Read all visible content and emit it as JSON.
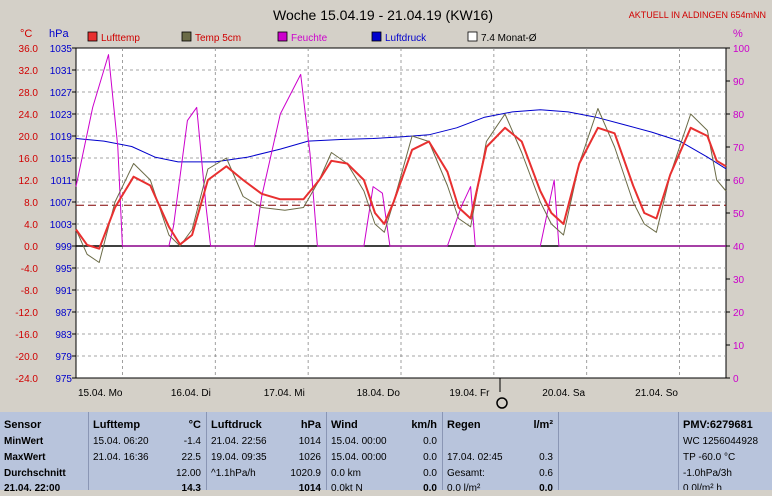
{
  "header": {
    "title": "Woche 15.04.19 - 21.04.19 (KW16)",
    "location": "AKTUELL IN ALDINGEN 654mNN"
  },
  "chart_data": {
    "type": "line",
    "title": "Woche 15.04.19 - 21.04.19 (KW16)",
    "left_axis_label": "°C",
    "left2_axis_label": "hPa",
    "right_axis_label": "%",
    "ylim_temp": [
      -24,
      36
    ],
    "ylim_pressure": [
      975,
      1037
    ],
    "ylim_humidity": [
      0,
      100
    ],
    "temp_ticks": [
      "36.0",
      "32.0",
      "28.0",
      "24.0",
      "20.0",
      "16.0",
      "12.0",
      "8.0",
      "4.0",
      "0.0",
      "-4.0",
      "-8.0",
      "-12.0",
      "-16.0",
      "-20.0",
      "-24.0"
    ],
    "pressure_ticks": [
      "1035",
      "1031",
      "1027",
      "1023",
      "1019",
      "1015",
      "1011",
      "1007",
      "1003",
      "999",
      "995",
      "991",
      "987",
      "983",
      "979",
      "975"
    ],
    "humidity_ticks": [
      "100",
      "90",
      "80",
      "70",
      "60",
      "50",
      "40",
      "30",
      "20",
      "10",
      "0"
    ],
    "x_labels": [
      "15.04. Mo",
      "16.04. Di",
      "17.04. Mi",
      "18.04. Do",
      "19.04. Fr",
      "20.04. Sa",
      "21.04. So"
    ],
    "legend": [
      "Lufttemp",
      "Temp 5cm",
      "Feuchte",
      "Luftdruck",
      "7.4 Monat-Ø"
    ],
    "colors": {
      "lufttemp": "#e83030",
      "temp5cm": "#6b6b47",
      "feuchte": "#cc00cc",
      "luftdruck": "#0000cc",
      "monat": "#000000"
    },
    "month_avg_temp": 7.4,
    "series": [
      {
        "name": "Lufttemp",
        "values": [
          [
            0,
            3
          ],
          [
            0.12,
            0.2
          ],
          [
            0.25,
            -0.5
          ],
          [
            0.42,
            7
          ],
          [
            0.62,
            12.6
          ],
          [
            0.8,
            11
          ],
          [
            1.0,
            3.5
          ],
          [
            1.12,
            0.3
          ],
          [
            1.25,
            2
          ],
          [
            1.42,
            12
          ],
          [
            1.62,
            14.5
          ],
          [
            1.8,
            12
          ],
          [
            2.0,
            9.5
          ],
          [
            2.2,
            8.5
          ],
          [
            2.45,
            8.5
          ],
          [
            2.62,
            12
          ],
          [
            2.75,
            15.5
          ],
          [
            2.92,
            15
          ],
          [
            3.1,
            12
          ],
          [
            3.22,
            6
          ],
          [
            3.32,
            4
          ],
          [
            3.42,
            8
          ],
          [
            3.62,
            17.5
          ],
          [
            3.8,
            19
          ],
          [
            4.0,
            13.5
          ],
          [
            4.12,
            7
          ],
          [
            4.25,
            5
          ],
          [
            4.42,
            18
          ],
          [
            4.62,
            21.5
          ],
          [
            4.8,
            19
          ],
          [
            5.0,
            10
          ],
          [
            5.12,
            6
          ],
          [
            5.25,
            4
          ],
          [
            5.42,
            15
          ],
          [
            5.62,
            21.5
          ],
          [
            5.8,
            20.5
          ],
          [
            6.0,
            11
          ],
          [
            6.12,
            6
          ],
          [
            6.25,
            5
          ],
          [
            6.4,
            13
          ],
          [
            6.62,
            21.5
          ],
          [
            6.8,
            20
          ],
          [
            6.9,
            15.5
          ],
          [
            7.0,
            14.5
          ]
        ]
      },
      {
        "name": "Temp 5cm",
        "values": [
          [
            0,
            3
          ],
          [
            0.12,
            -1.5
          ],
          [
            0.25,
            -3
          ],
          [
            0.42,
            8
          ],
          [
            0.62,
            15
          ],
          [
            0.8,
            12
          ],
          [
            1.0,
            2
          ],
          [
            1.12,
            0
          ],
          [
            1.25,
            3
          ],
          [
            1.42,
            14
          ],
          [
            1.62,
            16
          ],
          [
            1.8,
            9
          ],
          [
            2.0,
            7
          ],
          [
            2.25,
            6.5
          ],
          [
            2.45,
            7
          ],
          [
            2.62,
            12
          ],
          [
            2.75,
            17
          ],
          [
            2.92,
            15
          ],
          [
            3.1,
            10
          ],
          [
            3.22,
            4
          ],
          [
            3.32,
            2.5
          ],
          [
            3.42,
            8
          ],
          [
            3.62,
            20
          ],
          [
            3.8,
            19
          ],
          [
            4.0,
            11
          ],
          [
            4.12,
            5
          ],
          [
            4.25,
            3.5
          ],
          [
            4.42,
            19
          ],
          [
            4.62,
            24
          ],
          [
            4.8,
            17
          ],
          [
            5.0,
            8
          ],
          [
            5.12,
            4
          ],
          [
            5.25,
            2
          ],
          [
            5.42,
            15
          ],
          [
            5.62,
            25
          ],
          [
            5.8,
            18
          ],
          [
            6.0,
            8
          ],
          [
            6.12,
            4
          ],
          [
            6.25,
            2.5
          ],
          [
            6.4,
            13
          ],
          [
            6.62,
            24
          ],
          [
            6.8,
            21
          ],
          [
            6.9,
            12
          ],
          [
            7.0,
            10
          ]
        ]
      },
      {
        "name": "Feuchte",
        "values": [
          [
            0,
            58
          ],
          [
            0.18,
            82
          ],
          [
            0.35,
            98
          ],
          [
            0.45,
            70
          ],
          [
            0.5,
            40
          ],
          [
            1.0,
            40
          ],
          [
            1.05,
            46
          ],
          [
            1.2,
            78
          ],
          [
            1.3,
            82
          ],
          [
            1.4,
            52
          ],
          [
            1.45,
            40
          ],
          [
            1.92,
            40
          ],
          [
            2.0,
            55
          ],
          [
            2.2,
            80
          ],
          [
            2.42,
            92
          ],
          [
            2.52,
            68
          ],
          [
            2.6,
            40
          ],
          [
            3.1,
            40
          ],
          [
            3.2,
            58
          ],
          [
            3.3,
            56
          ],
          [
            3.38,
            40
          ],
          [
            4.0,
            40
          ],
          [
            4.15,
            52
          ],
          [
            4.25,
            58
          ],
          [
            4.3,
            40
          ],
          [
            5.0,
            40
          ],
          [
            5.15,
            60
          ],
          [
            5.2,
            40
          ],
          [
            7.0,
            40
          ]
        ]
      },
      {
        "name": "Luftdruck",
        "values": [
          [
            0,
            1020
          ],
          [
            0.3,
            1019.5
          ],
          [
            0.6,
            1018.5
          ],
          [
            0.85,
            1016.5
          ],
          [
            1.1,
            1015.6
          ],
          [
            1.5,
            1015.6
          ],
          [
            1.85,
            1016.5
          ],
          [
            2.2,
            1018
          ],
          [
            2.5,
            1019.5
          ],
          [
            2.85,
            1019.8
          ],
          [
            3.2,
            1020
          ],
          [
            3.5,
            1020.3
          ],
          [
            3.8,
            1020.7
          ],
          [
            4.1,
            1022
          ],
          [
            4.4,
            1024
          ],
          [
            4.7,
            1025
          ],
          [
            5.0,
            1025.4
          ],
          [
            5.3,
            1025
          ],
          [
            5.6,
            1024
          ],
          [
            5.9,
            1022.6
          ],
          [
            6.2,
            1021.2
          ],
          [
            6.5,
            1019.5
          ],
          [
            6.8,
            1016.5
          ],
          [
            7.0,
            1014.3
          ]
        ]
      }
    ]
  },
  "panel": {
    "sensor": {
      "title": "Sensor",
      "rows": [
        "MinWert",
        "MaxWert",
        "Durchschnitt",
        "21.04. 22:00"
      ]
    },
    "lufttemp": {
      "title": "Lufttemp",
      "unit": "°C",
      "rows": [
        [
          "15.04.  06:20",
          "-1.4"
        ],
        [
          "21.04.  16:36",
          "22.5"
        ],
        [
          "",
          "12.00"
        ],
        [
          "",
          "14.3"
        ]
      ]
    },
    "luftdruck": {
      "title": "Luftdruck",
      "unit": "hPa",
      "rows": [
        [
          "21.04.  22:56",
          "1014"
        ],
        [
          "19.04.  09:35",
          "1026"
        ],
        [
          "^1.1hPa/h",
          "1020.9"
        ],
        [
          "",
          "1014"
        ]
      ]
    },
    "wind": {
      "title": "Wind",
      "unit": "km/h",
      "rows": [
        [
          "15.04.  00:00",
          "0.0"
        ],
        [
          "15.04.  00:00",
          "0.0"
        ],
        [
          "0.0 km",
          "0.0"
        ],
        [
          "0.0kt N",
          "0.0"
        ]
      ]
    },
    "regen": {
      "title": "Regen",
      "unit": "l/m²",
      "rows": [
        [
          "",
          ""
        ],
        [
          "17.04.  02:45",
          "0.3"
        ],
        [
          "Gesamt:",
          "0.6"
        ],
        [
          "0.0 l/m²",
          "0.0"
        ]
      ]
    },
    "pmv": {
      "title": "PMV:6279681",
      "rows": [
        "WC 1256044928",
        "TP -60.0 °C",
        "-1.0hPa/3h",
        "0.0l/m² h"
      ]
    }
  }
}
